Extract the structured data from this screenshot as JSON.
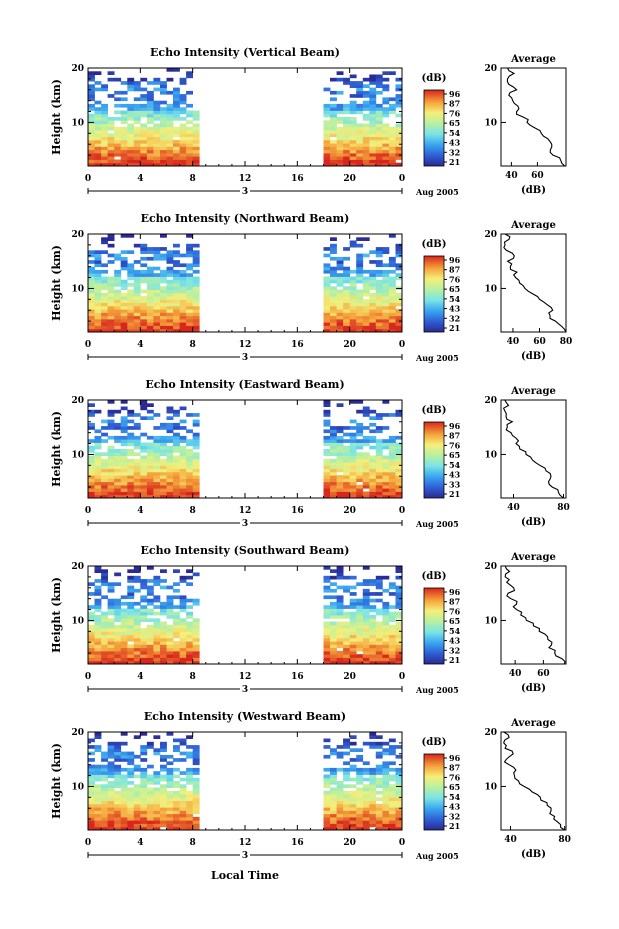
{
  "figure": {
    "xlabel_bottom": "Local Time"
  },
  "chart_data": [
    {
      "type": "heatmap",
      "title": "Echo Intensity (Vertical Beam)",
      "ylabel": "Height (km)",
      "x_ticks": [
        "0",
        "4",
        "8",
        "12",
        "16",
        "20",
        "0"
      ],
      "ylim": [
        2,
        20
      ],
      "y_ticks": [
        "20",
        "10"
      ],
      "xlim": [
        0,
        24
      ],
      "data_gap_hours": [
        8.7,
        17.7
      ],
      "date_marker": "3",
      "date_label": "Aug 2005",
      "colorbar": {
        "unit": "(dB)",
        "ticks": [
          "96",
          "87",
          "76",
          "65",
          "54",
          "43",
          "32",
          "21"
        ]
      },
      "average_profile": {
        "title": "Average",
        "xlabel": "(dB)",
        "x_ticks": [
          "40",
          "60"
        ],
        "xlim": [
          32,
          82
        ],
        "y_ticks": [
          "20",
          "10"
        ],
        "height_km": [
          2,
          3,
          4,
          5,
          6,
          7,
          8,
          9,
          10,
          11,
          12,
          13,
          14,
          15,
          16,
          17,
          18,
          19,
          20
        ],
        "db": [
          81,
          78,
          72,
          70,
          71,
          68,
          63,
          58,
          52,
          49,
          44,
          45,
          41,
          38,
          44,
          38,
          37,
          42,
          37
        ]
      }
    },
    {
      "type": "heatmap",
      "title": "Echo Intensity (Northward Beam)",
      "ylabel": "Height (km)",
      "x_ticks": [
        "0",
        "4",
        "8",
        "12",
        "16",
        "20",
        "0"
      ],
      "ylim": [
        2,
        20
      ],
      "y_ticks": [
        "20",
        "10"
      ],
      "xlim": [
        0,
        24
      ],
      "data_gap_hours": [
        8.7,
        17.7
      ],
      "date_marker": "3",
      "date_label": "Aug 2005",
      "colorbar": {
        "unit": "(dB)",
        "ticks": [
          "96",
          "87",
          "76",
          "65",
          "54",
          "43",
          "32",
          "21"
        ]
      },
      "average_profile": {
        "title": "Average",
        "xlabel": "(dB)",
        "x_ticks": [
          "40",
          "60",
          "80"
        ],
        "xlim": [
          31,
          80
        ],
        "y_ticks": [
          "20",
          "10"
        ],
        "height_km": [
          2,
          3,
          4,
          5,
          6,
          7,
          8,
          9,
          10,
          11,
          12,
          13,
          14,
          15,
          16,
          17,
          18,
          19,
          20
        ],
        "db": [
          80,
          77,
          72,
          68,
          70,
          66,
          60,
          55,
          49,
          45,
          42,
          43,
          38,
          36,
          41,
          35,
          34,
          37,
          34
        ]
      }
    },
    {
      "type": "heatmap",
      "title": "Echo Intensity (Eastward Beam)",
      "ylabel": "Height (km)",
      "x_ticks": [
        "0",
        "4",
        "8",
        "12",
        "16",
        "20",
        "0"
      ],
      "ylim": [
        2,
        20
      ],
      "y_ticks": [
        "20",
        "10"
      ],
      "xlim": [
        0,
        24
      ],
      "data_gap_hours": [
        8.7,
        17.7
      ],
      "date_marker": "3",
      "date_label": "Aug 2005",
      "colorbar": {
        "unit": "(dB)",
        "ticks": [
          "96",
          "87",
          "76",
          "65",
          "54",
          "43",
          "33",
          "21"
        ]
      },
      "average_profile": {
        "title": "Average",
        "xlabel": "(dB)",
        "x_ticks": [
          "40",
          "80"
        ],
        "xlim": [
          30,
          82
        ],
        "y_ticks": [
          "20",
          "10"
        ],
        "height_km": [
          2,
          3,
          4,
          5,
          6,
          7,
          8,
          9,
          10,
          11,
          12,
          13,
          14,
          15,
          16,
          17,
          18,
          19,
          20
        ],
        "db": [
          80,
          76,
          71,
          68,
          70,
          66,
          61,
          55,
          50,
          45,
          42,
          42,
          38,
          35,
          39,
          34,
          33,
          36,
          33
        ]
      }
    },
    {
      "type": "heatmap",
      "title": "Echo Intensity (Southward Beam)",
      "ylabel": "Height (km)",
      "x_ticks": [
        "0",
        "4",
        "8",
        "12",
        "16",
        "20",
        "0"
      ],
      "ylim": [
        2,
        20
      ],
      "y_ticks": [
        "20",
        "10"
      ],
      "xlim": [
        0,
        24
      ],
      "data_gap_hours": [
        8.7,
        17.7
      ],
      "date_marker": "3",
      "date_label": "Aug 2005",
      "colorbar": {
        "unit": "(dB)",
        "ticks": [
          "96",
          "87",
          "76",
          "65",
          "54",
          "43",
          "32",
          "21"
        ]
      },
      "average_profile": {
        "title": "Average",
        "xlabel": "(dB)",
        "x_ticks": [
          "40",
          "60"
        ],
        "xlim": [
          30,
          76
        ],
        "y_ticks": [
          "20",
          "10"
        ],
        "height_km": [
          2,
          3,
          4,
          5,
          6,
          7,
          8,
          9,
          10,
          11,
          12,
          13,
          14,
          15,
          16,
          17,
          18,
          19,
          20
        ],
        "db": [
          75,
          73,
          68,
          64,
          66,
          63,
          57,
          53,
          48,
          44,
          41,
          41,
          37,
          35,
          39,
          34,
          33,
          36,
          33
        ]
      }
    },
    {
      "type": "heatmap",
      "title": "Echo Intensity (Westward Beam)",
      "ylabel": "Height (km)",
      "x_ticks": [
        "0",
        "4",
        "8",
        "12",
        "16",
        "20",
        "0"
      ],
      "ylim": [
        2,
        20
      ],
      "y_ticks": [
        "20",
        "10"
      ],
      "xlim": [
        0,
        24
      ],
      "data_gap_hours": [
        8.7,
        17.7
      ],
      "date_marker": "3",
      "date_label": "Aug 2005",
      "colorbar": {
        "unit": "(dB)",
        "ticks": [
          "96",
          "87",
          "76",
          "65",
          "54",
          "43",
          "32",
          "21"
        ]
      },
      "average_profile": {
        "title": "Average",
        "xlabel": "(dB)",
        "x_ticks": [
          "40",
          "80"
        ],
        "xlim": [
          33,
          81
        ],
        "y_ticks": [
          "20",
          "10"
        ],
        "height_km": [
          2,
          3,
          4,
          5,
          6,
          7,
          8,
          9,
          10,
          11,
          12,
          13,
          14,
          15,
          16,
          17,
          18,
          19,
          20
        ],
        "db": [
          80,
          77,
          72,
          69,
          70,
          67,
          62,
          56,
          50,
          46,
          43,
          44,
          39,
          37,
          42,
          36,
          35,
          39,
          35
        ]
      }
    }
  ]
}
